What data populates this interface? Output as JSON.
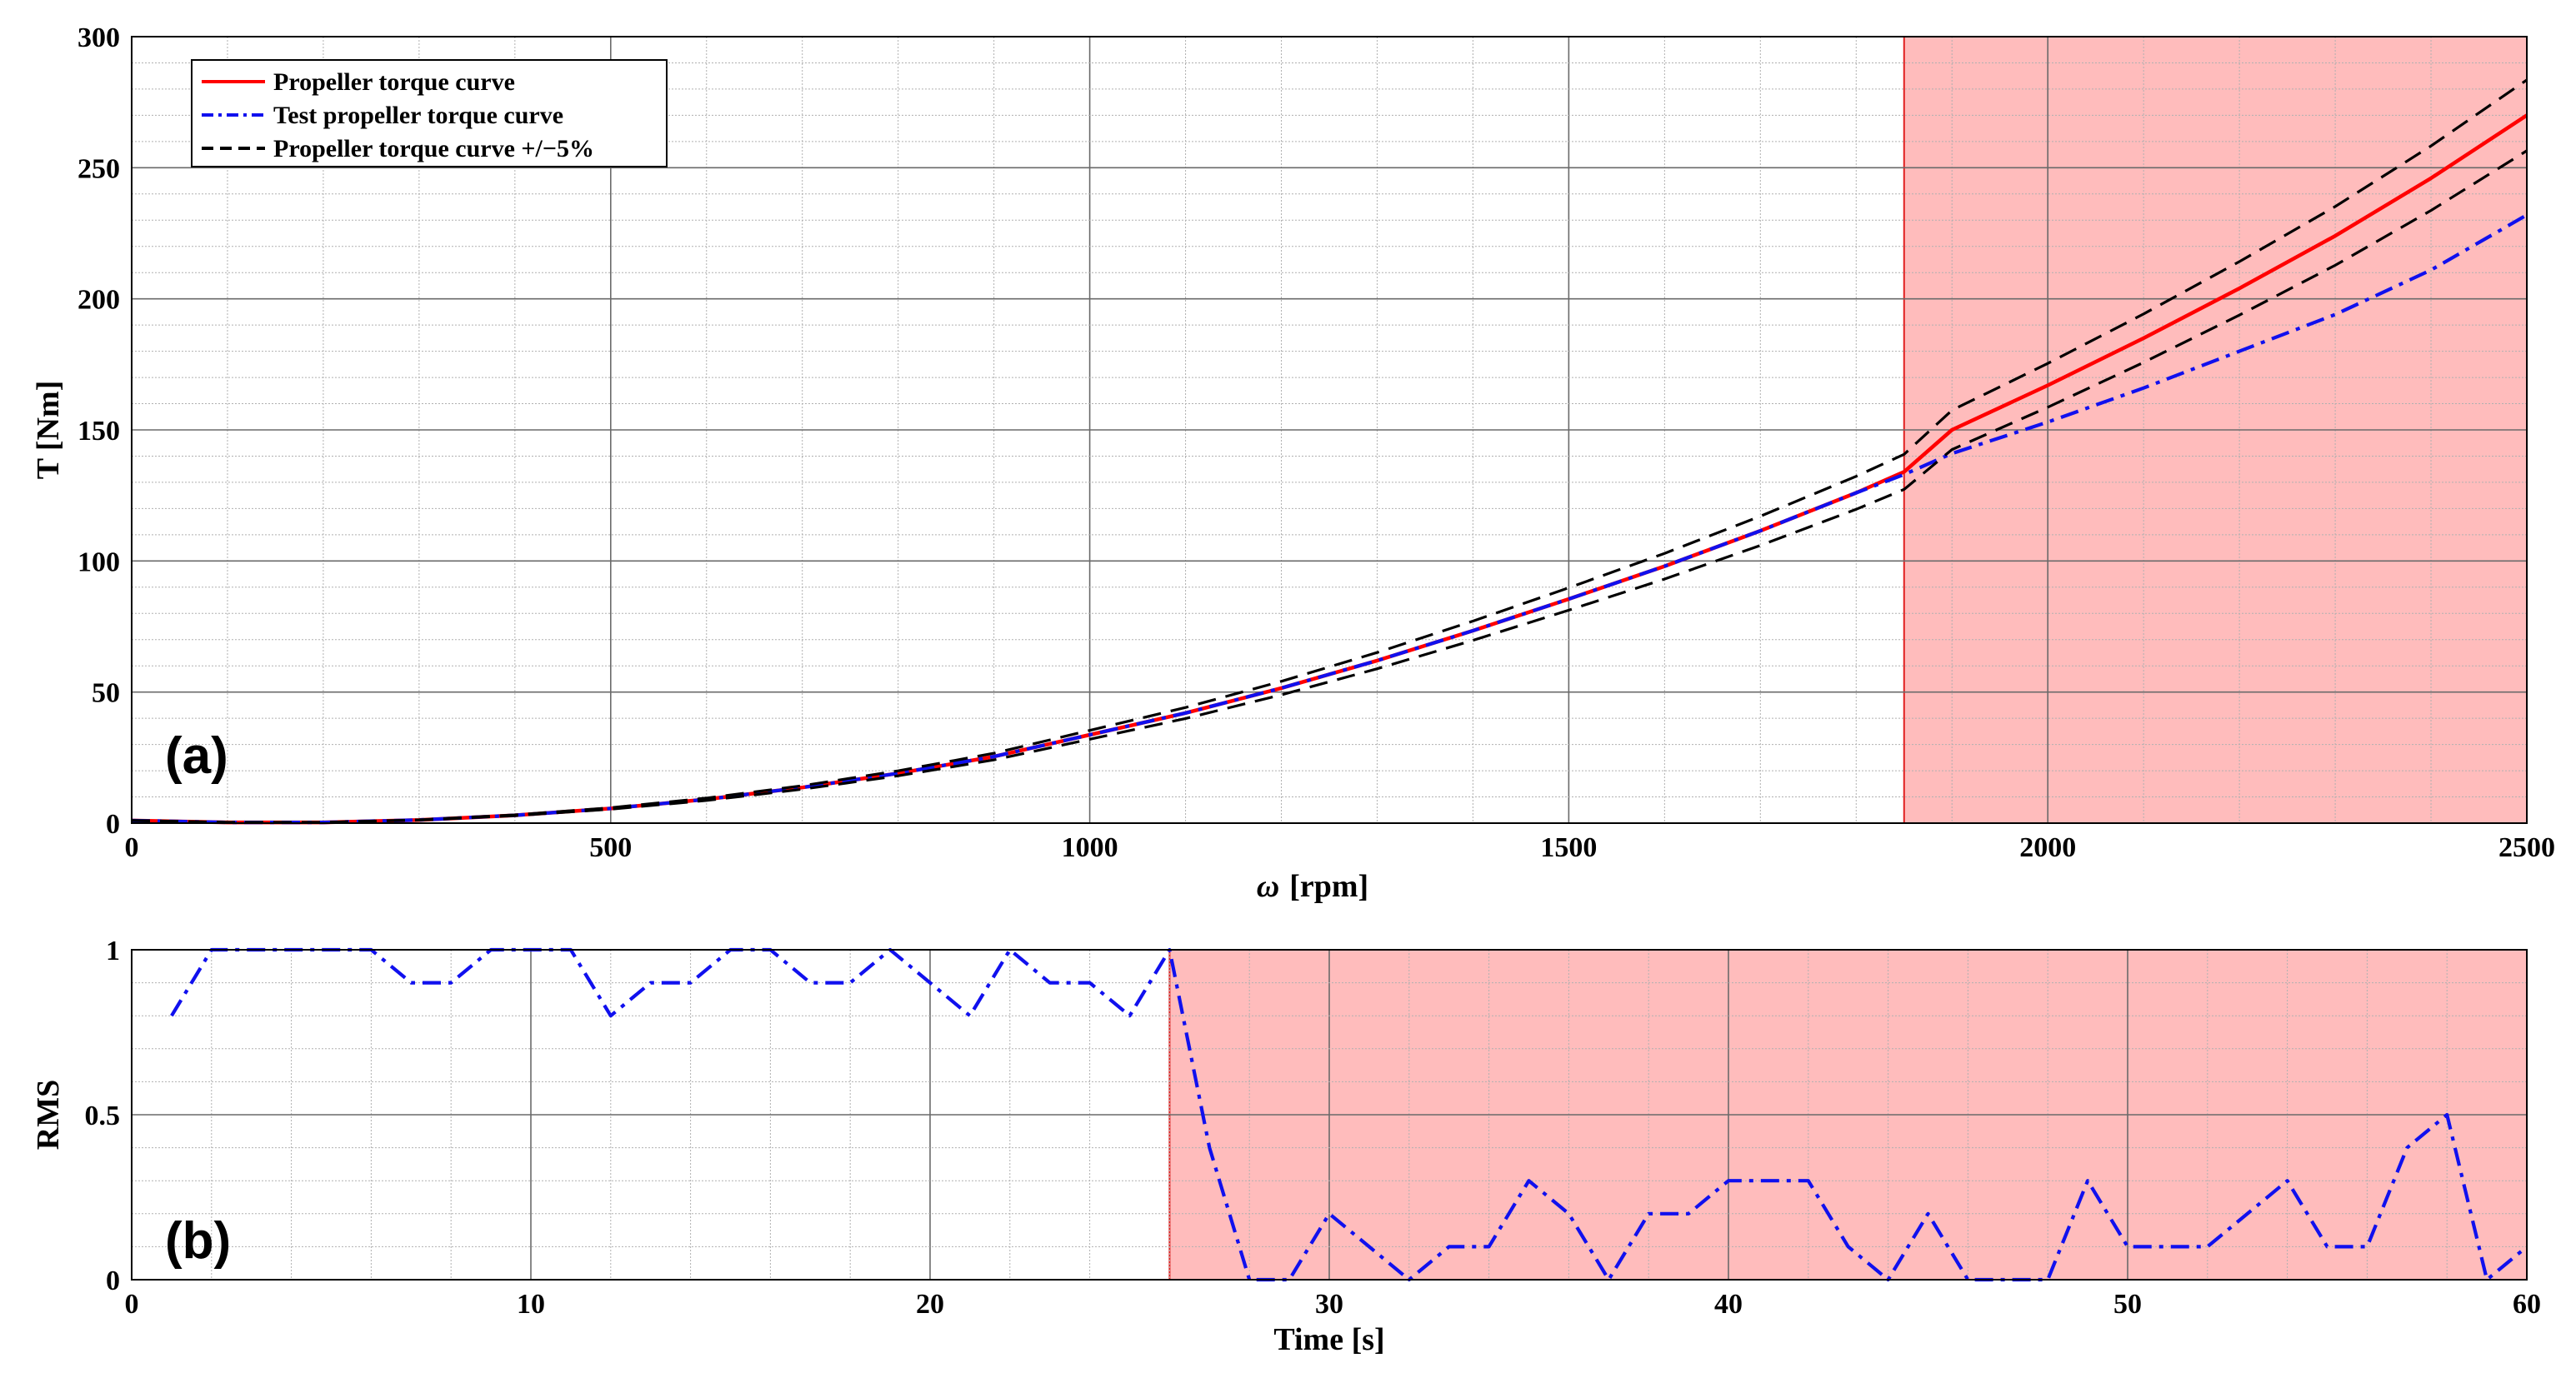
{
  "chart_data": [
    {
      "type": "line",
      "panel_label": "(a)",
      "xlabel_symbol": "ω",
      "xlabel": "[rpm]",
      "ylabel": "T [Nm]",
      "xlim": [
        0,
        2500
      ],
      "ylim": [
        0,
        300
      ],
      "xticks": [
        0,
        500,
        1000,
        1500,
        2000,
        2500
      ],
      "yticks": [
        0,
        50,
        100,
        150,
        200,
        250,
        300
      ],
      "shaded_region": {
        "x_start": 1850,
        "x_end": 2500,
        "color": "#ffbcbc",
        "edge_color": "#e02020"
      },
      "series": [
        {
          "name": "Propeller torque curve",
          "color": "#ff0000",
          "style": "solid",
          "x": [
            0,
            100,
            200,
            300,
            400,
            500,
            600,
            700,
            800,
            900,
            1000,
            1100,
            1200,
            1300,
            1400,
            1500,
            1600,
            1700,
            1800,
            1850,
            1900,
            2000,
            2100,
            2200,
            2300,
            2400,
            2500
          ],
          "y": [
            1,
            0.3,
            0.3,
            1.2,
            3,
            5.6,
            9.1,
            13.6,
            19,
            25.4,
            33.7,
            42,
            51.5,
            62,
            73.4,
            85.5,
            98,
            111.5,
            126,
            134,
            150,
            167,
            185,
            204,
            224,
            246,
            270
          ]
        },
        {
          "name": "Test propeller torque curve",
          "color": "#1010ee",
          "style": "dashdot",
          "x": [
            0,
            100,
            200,
            300,
            400,
            500,
            600,
            700,
            800,
            900,
            1000,
            1100,
            1200,
            1300,
            1400,
            1500,
            1600,
            1700,
            1800,
            1850,
            1900,
            2000,
            2100,
            2200,
            2300,
            2400,
            2500
          ],
          "y": [
            1,
            0.3,
            0.3,
            1.2,
            3,
            5.6,
            9.1,
            13.6,
            19,
            25.4,
            33.7,
            42,
            51.5,
            62,
            73.4,
            85.5,
            98,
            111.5,
            126,
            133,
            141,
            153,
            166,
            180,
            194,
            211,
            232
          ]
        },
        {
          "name": "Propeller torque curve +/−5%",
          "color": "#000000",
          "style": "dashed",
          "band_percent": 5
        }
      ]
    },
    {
      "type": "line",
      "panel_label": "(b)",
      "xlabel": "Time [s]",
      "ylabel": "RMS",
      "xlim": [
        0,
        60
      ],
      "ylim": [
        0,
        1
      ],
      "xticks": [
        0,
        10,
        20,
        30,
        40,
        50,
        60
      ],
      "yticks": [
        0,
        0.5,
        1
      ],
      "shaded_region": {
        "x_start": 26,
        "x_end": 60,
        "color": "#ffbcbc",
        "edge_color": "#e02020"
      },
      "series": [
        {
          "name": "RMS",
          "color": "#1010ee",
          "style": "dashdot",
          "x": [
            1,
            2,
            3,
            4,
            5,
            6,
            7,
            8,
            9,
            10,
            11,
            12,
            13,
            14,
            15,
            16,
            17,
            18,
            19,
            20,
            21,
            22,
            23,
            24,
            25,
            26,
            27,
            28,
            29,
            30,
            31,
            32,
            33,
            34,
            35,
            36,
            37,
            38,
            39,
            40,
            41,
            42,
            43,
            44,
            45,
            46,
            47,
            48,
            49,
            50,
            51,
            52,
            53,
            54,
            55,
            56,
            57,
            58,
            59,
            60
          ],
          "y": [
            0.8,
            1,
            1,
            1,
            1,
            1,
            0.9,
            0.9,
            1,
            1,
            1,
            0.8,
            0.9,
            0.9,
            1,
            1,
            0.9,
            0.9,
            1,
            0.9,
            0.8,
            1,
            0.9,
            0.9,
            0.8,
            1,
            0.4,
            0,
            0,
            0.2,
            0.1,
            0,
            0.1,
            0.1,
            0.3,
            0.2,
            0,
            0.2,
            0.2,
            0.3,
            0.3,
            0.3,
            0.1,
            0,
            0.2,
            0,
            0,
            0,
            0.3,
            0.1,
            0.1,
            0.1,
            0.2,
            0.3,
            0.1,
            0.1,
            0.4,
            0.5,
            0,
            0.1
          ]
        }
      ]
    }
  ]
}
